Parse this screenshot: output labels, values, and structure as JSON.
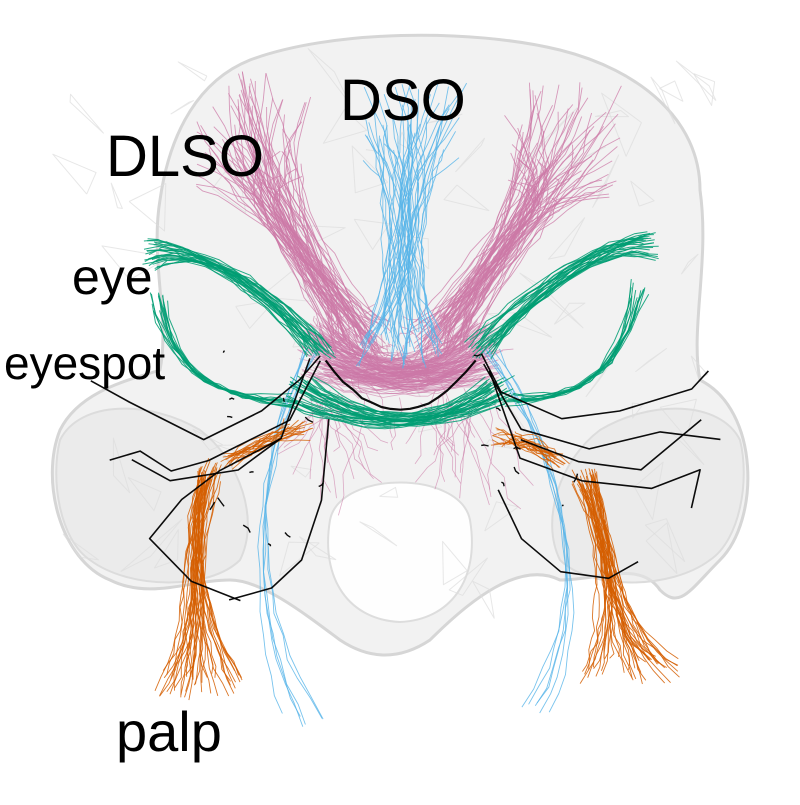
{
  "labels": {
    "dso": "DSO",
    "dlso": "DLSO",
    "eye": "eye",
    "eyespot": "eyespot",
    "palp": "palp"
  },
  "colors": {
    "background": "#ffffff",
    "brain_outline": "#d9d9d9",
    "brain_fill": "#eeeeee",
    "dso": "#56b4e9",
    "dlso": "#cc79a7",
    "eye": "#009e73",
    "eyespot": "#000000",
    "palp": "#d55e00"
  }
}
